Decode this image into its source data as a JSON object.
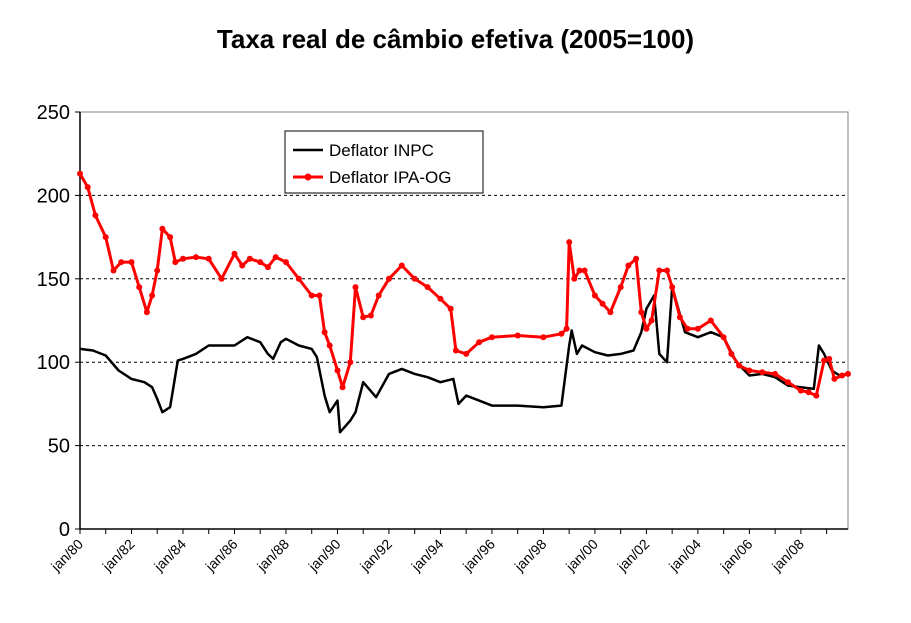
{
  "chart_data": {
    "type": "line",
    "title": "Taxa real de câmbio efetiva (2005=100)",
    "xlabel": "",
    "ylabel": "",
    "ylim": [
      0,
      250
    ],
    "yticks": [
      0,
      50,
      100,
      150,
      200,
      250
    ],
    "xlim": [
      1980.0,
      2009.83
    ],
    "xticks": [
      "jan/80",
      "jan/82",
      "jan/84",
      "jan/86",
      "jan/88",
      "jan/90",
      "jan/92",
      "jan/94",
      "jan/96",
      "jan/98",
      "jan/00",
      "jan/02",
      "jan/04",
      "jan/06",
      "jan/08"
    ],
    "grid": "horizontal dashed",
    "legend": "top-left inside plot",
    "colors": {
      "inpc": "#000000",
      "ipa": "#ff0000"
    },
    "series": [
      {
        "name": "Deflator INPC",
        "x": [
          1980.0,
          1980.5,
          1981.0,
          1981.5,
          1982.0,
          1982.5,
          1982.8,
          1983.0,
          1983.2,
          1983.5,
          1983.8,
          1984.0,
          1984.5,
          1985.0,
          1985.5,
          1986.0,
          1986.5,
          1987.0,
          1987.3,
          1987.5,
          1987.8,
          1988.0,
          1988.5,
          1989.0,
          1989.2,
          1989.5,
          1989.7,
          1990.0,
          1990.1,
          1990.5,
          1990.7,
          1991.0,
          1991.5,
          1992.0,
          1992.5,
          1993.0,
          1993.5,
          1994.0,
          1994.5,
          1994.7,
          1995.0,
          1995.5,
          1996.0,
          1997.0,
          1998.0,
          1998.7,
          1999.0,
          1999.1,
          1999.3,
          1999.5,
          2000.0,
          2000.5,
          2001.0,
          2001.5,
          2001.8,
          2002.0,
          2002.3,
          2002.5,
          2002.8,
          2003.0,
          2003.5,
          2004.0,
          2004.5,
          2005.0,
          2005.5,
          2006.0,
          2006.5,
          2007.0,
          2007.5,
          2008.0,
          2008.5,
          2008.7,
          2008.9,
          2009.2,
          2009.5,
          2009.83
        ],
        "values": [
          108,
          107,
          104,
          95,
          90,
          88,
          85,
          78,
          70,
          73,
          101,
          102,
          105,
          110,
          110,
          110,
          115,
          112,
          105,
          102,
          112,
          114,
          110,
          108,
          103,
          80,
          70,
          77,
          58,
          65,
          70,
          88,
          79,
          93,
          96,
          93,
          91,
          88,
          90,
          75,
          80,
          77,
          74,
          74,
          73,
          74,
          110,
          119,
          105,
          110,
          106,
          104,
          105,
          107,
          118,
          132,
          140,
          105,
          100,
          145,
          118,
          115,
          118,
          115,
          100,
          92,
          93,
          91,
          86,
          85,
          84,
          110,
          105,
          95,
          92,
          93
        ]
      },
      {
        "name": "Deflator IPA-OG",
        "x": [
          1980.0,
          1980.3,
          1980.6,
          1981.0,
          1981.3,
          1981.6,
          1982.0,
          1982.3,
          1982.6,
          1982.8,
          1983.0,
          1983.2,
          1983.5,
          1983.7,
          1984.0,
          1984.5,
          1985.0,
          1985.5,
          1986.0,
          1986.3,
          1986.6,
          1987.0,
          1987.3,
          1987.6,
          1988.0,
          1988.5,
          1989.0,
          1989.3,
          1989.5,
          1989.7,
          1990.0,
          1990.2,
          1990.5,
          1990.7,
          1991.0,
          1991.3,
          1991.6,
          1992.0,
          1992.5,
          1993.0,
          1993.5,
          1994.0,
          1994.4,
          1994.6,
          1995.0,
          1995.5,
          1996.0,
          1997.0,
          1998.0,
          1998.7,
          1998.9,
          1999.0,
          1999.2,
          1999.4,
          1999.6,
          2000.0,
          2000.3,
          2000.6,
          2001.0,
          2001.3,
          2001.6,
          2001.8,
          2002.0,
          2002.2,
          2002.5,
          2002.8,
          2003.0,
          2003.3,
          2003.6,
          2004.0,
          2004.5,
          2005.0,
          2005.3,
          2005.6,
          2006.0,
          2006.5,
          2007.0,
          2007.5,
          2008.0,
          2008.3,
          2008.6,
          2008.9,
          2009.1,
          2009.3,
          2009.6,
          2009.83
        ],
        "values": [
          213,
          205,
          188,
          175,
          155,
          160,
          160,
          145,
          130,
          140,
          155,
          180,
          175,
          160,
          162,
          163,
          162,
          150,
          165,
          158,
          162,
          160,
          157,
          163,
          160,
          150,
          140,
          140,
          118,
          110,
          95,
          85,
          100,
          145,
          127,
          128,
          140,
          150,
          158,
          150,
          145,
          138,
          132,
          107,
          105,
          112,
          115,
          116,
          115,
          117,
          120,
          172,
          150,
          155,
          155,
          140,
          135,
          130,
          145,
          158,
          162,
          130,
          120,
          125,
          155,
          155,
          145,
          127,
          120,
          120,
          125,
          115,
          105,
          98,
          95,
          94,
          93,
          88,
          83,
          82,
          80,
          101,
          102,
          90,
          92,
          93
        ]
      }
    ]
  }
}
